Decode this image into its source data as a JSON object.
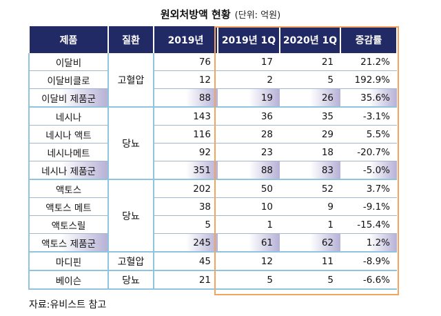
{
  "title": "원외처방액 현황",
  "unit": "(단위: 억원)",
  "headers": [
    "제품",
    "질환",
    "2019년",
    "2019년 1Q",
    "2020년 1Q",
    "증감률"
  ],
  "groups": [
    {
      "disease": "고혈압",
      "rows": [
        {
          "product": "이달비",
          "y2019": "76",
          "q2019": "17",
          "q2020": "21",
          "change": "21.2%"
        },
        {
          "product": "이달비클로",
          "y2019": "12",
          "q2019": "2",
          "q2020": "5",
          "change": "192.9%"
        },
        {
          "product": "이달비 제품군",
          "y2019": "88",
          "q2019": "19",
          "q2020": "26",
          "change": "35.6%"
        }
      ]
    },
    {
      "disease": "당뇨",
      "rows": [
        {
          "product": "네시나",
          "y2019": "143",
          "q2019": "36",
          "q2020": "35",
          "change": "-3.1%"
        },
        {
          "product": "네시나 액트",
          "y2019": "116",
          "q2019": "28",
          "q2020": "29",
          "change": "5.5%"
        },
        {
          "product": "네시나메트",
          "y2019": "92",
          "q2019": "23",
          "q2020": "18",
          "change": "-20.7%"
        },
        {
          "product": "네시나 제품군",
          "y2019": "351",
          "q2019": "88",
          "q2020": "83",
          "change": "-5.0%"
        }
      ]
    },
    {
      "disease": "당뇨",
      "rows": [
        {
          "product": "액토스",
          "y2019": "202",
          "q2019": "50",
          "q2020": "52",
          "change": "3.7%"
        },
        {
          "product": "액토스 메트",
          "y2019": "38",
          "q2019": "10",
          "q2020": "9",
          "change": "-9.1%"
        },
        {
          "product": "액토스릴",
          "y2019": "5",
          "q2019": "1",
          "q2020": "1",
          "change": "-15.4%"
        },
        {
          "product": "액토스 제품군",
          "y2019": "245",
          "q2019": "61",
          "q2020": "62",
          "change": "1.2%"
        }
      ]
    },
    {
      "disease": "고혈압",
      "rows": [
        {
          "product": "마디핀",
          "y2019": "45",
          "q2019": "12",
          "q2020": "11",
          "change": "-8.9%"
        }
      ]
    },
    {
      "disease": "당뇨",
      "rows": [
        {
          "product": "베이슨",
          "y2019": "21",
          "q2019": "5",
          "q2020": "5",
          "change": "-6.6%"
        }
      ]
    }
  ],
  "source": "자료:유비스트 참고"
}
